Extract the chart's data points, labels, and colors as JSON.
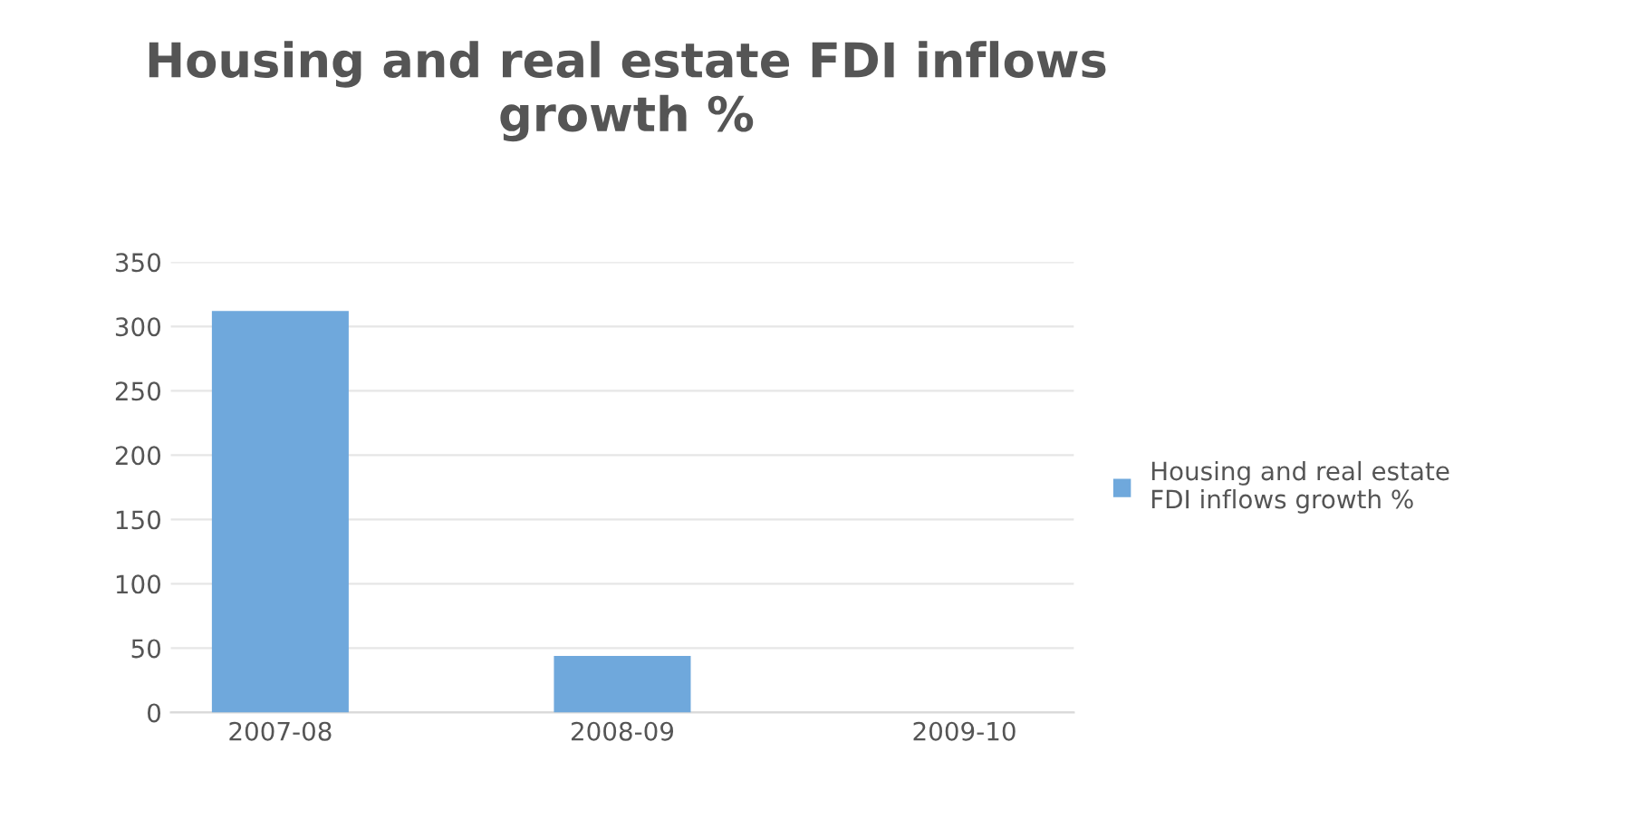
{
  "chart_data": {
    "type": "bar",
    "title": "Housing and real estate FDI inflows growth %",
    "categories": [
      "2007-08",
      "2008-09",
      "2009-10"
    ],
    "series": [
      {
        "name": "Housing and real estate FDI inflows growth %",
        "color": "#6fa8dc",
        "values": [
          312,
          44,
          0
        ]
      }
    ],
    "ylim": [
      0,
      350
    ],
    "yticks": [
      0,
      50,
      100,
      150,
      200,
      250,
      300,
      350
    ],
    "grid": "y",
    "legend": "right"
  }
}
